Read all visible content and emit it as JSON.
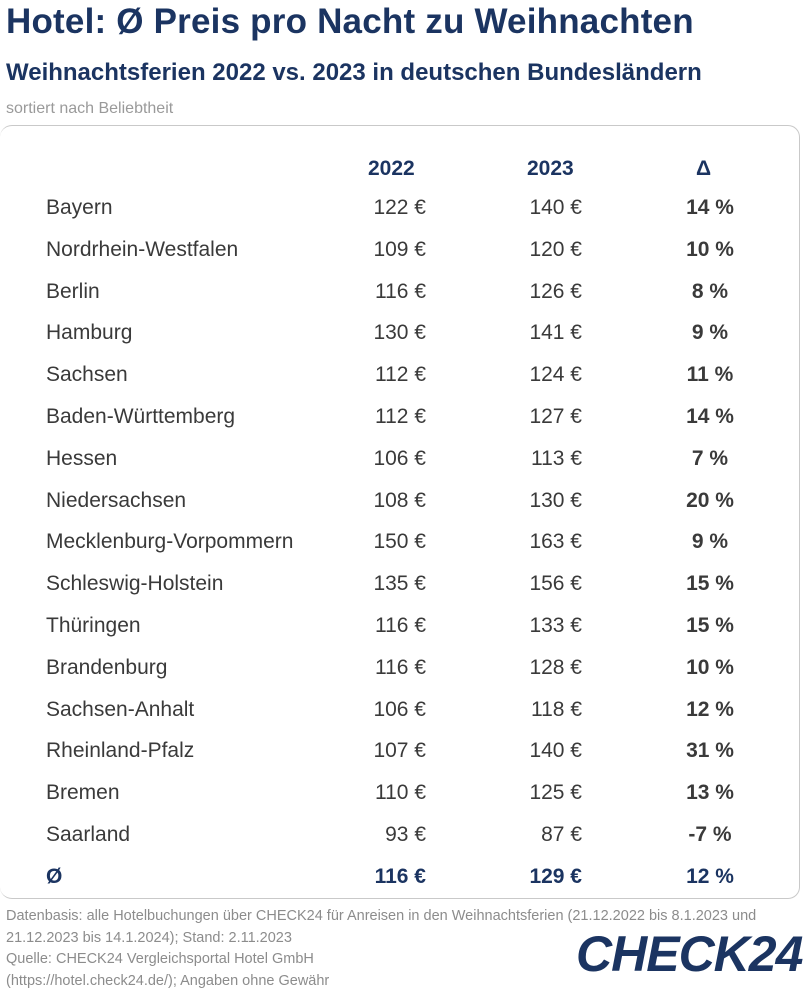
{
  "title": "Hotel: Ø Preis pro Nacht zu Weihnachten",
  "subtitle": "Weihnachtsferien 2022 vs. 2023 in deutschen Bundesländern",
  "sort_note": "sortiert nach Beliebtheit",
  "footer": {
    "line1": "Datenbasis: alle Hotelbuchungen über CHECK24 für Anreisen in den Weihnachtsferien (21.12.2022 bis 8.1.2023 und",
    "line2": "21.12.2023 bis 14.1.2024); Stand: 2.11.2023",
    "line3": "Quelle: CHECK24 Vergleichsportal Hotel GmbH",
    "line4": "(https://hotel.check24.de/); Angaben ohne Gewähr"
  },
  "logo_text": "CHECK24",
  "colors": {
    "brand_navy": "#1b3461",
    "text_gray": "#3a3a3a",
    "note_gray": "#9a9a9a"
  },
  "chart_data": {
    "type": "table",
    "columns": [
      "",
      "2022",
      "2023",
      "Δ"
    ],
    "rows": [
      {
        "name": "Bayern",
        "v2022": "122 €",
        "v2023": "140 €",
        "delta": "14 %"
      },
      {
        "name": "Nordrhein-Westfalen",
        "v2022": "109 €",
        "v2023": "120 €",
        "delta": "10 %"
      },
      {
        "name": "Berlin",
        "v2022": "116 €",
        "v2023": "126 €",
        "delta": "8 %"
      },
      {
        "name": "Hamburg",
        "v2022": "130 €",
        "v2023": "141 €",
        "delta": "9 %"
      },
      {
        "name": "Sachsen",
        "v2022": "112 €",
        "v2023": "124 €",
        "delta": "11 %"
      },
      {
        "name": "Baden-Württemberg",
        "v2022": "112 €",
        "v2023": "127 €",
        "delta": "14 %"
      },
      {
        "name": "Hessen",
        "v2022": "106 €",
        "v2023": "113 €",
        "delta": "7 %"
      },
      {
        "name": "Niedersachsen",
        "v2022": "108 €",
        "v2023": "130 €",
        "delta": "20 %"
      },
      {
        "name": "Mecklenburg-Vorpommern",
        "v2022": "150 €",
        "v2023": "163 €",
        "delta": "9 %"
      },
      {
        "name": "Schleswig-Holstein",
        "v2022": "135 €",
        "v2023": "156 €",
        "delta": "15 %"
      },
      {
        "name": "Thüringen",
        "v2022": "116 €",
        "v2023": "133 €",
        "delta": "15 %"
      },
      {
        "name": "Brandenburg",
        "v2022": "116 €",
        "v2023": "128 €",
        "delta": "10 %"
      },
      {
        "name": "Sachsen-Anhalt",
        "v2022": "106 €",
        "v2023": "118 €",
        "delta": "12 %"
      },
      {
        "name": "Rheinland-Pfalz",
        "v2022": "107 €",
        "v2023": "140 €",
        "delta": "31 %"
      },
      {
        "name": "Bremen",
        "v2022": "110 €",
        "v2023": "125 €",
        "delta": "13 %"
      },
      {
        "name": "Saarland",
        "v2022": "93 €",
        "v2023": "87 €",
        "delta": "-7 %"
      }
    ],
    "average": {
      "name": "Ø",
      "v2022": "116 €",
      "v2023": "129 €",
      "delta": "12 %"
    }
  }
}
